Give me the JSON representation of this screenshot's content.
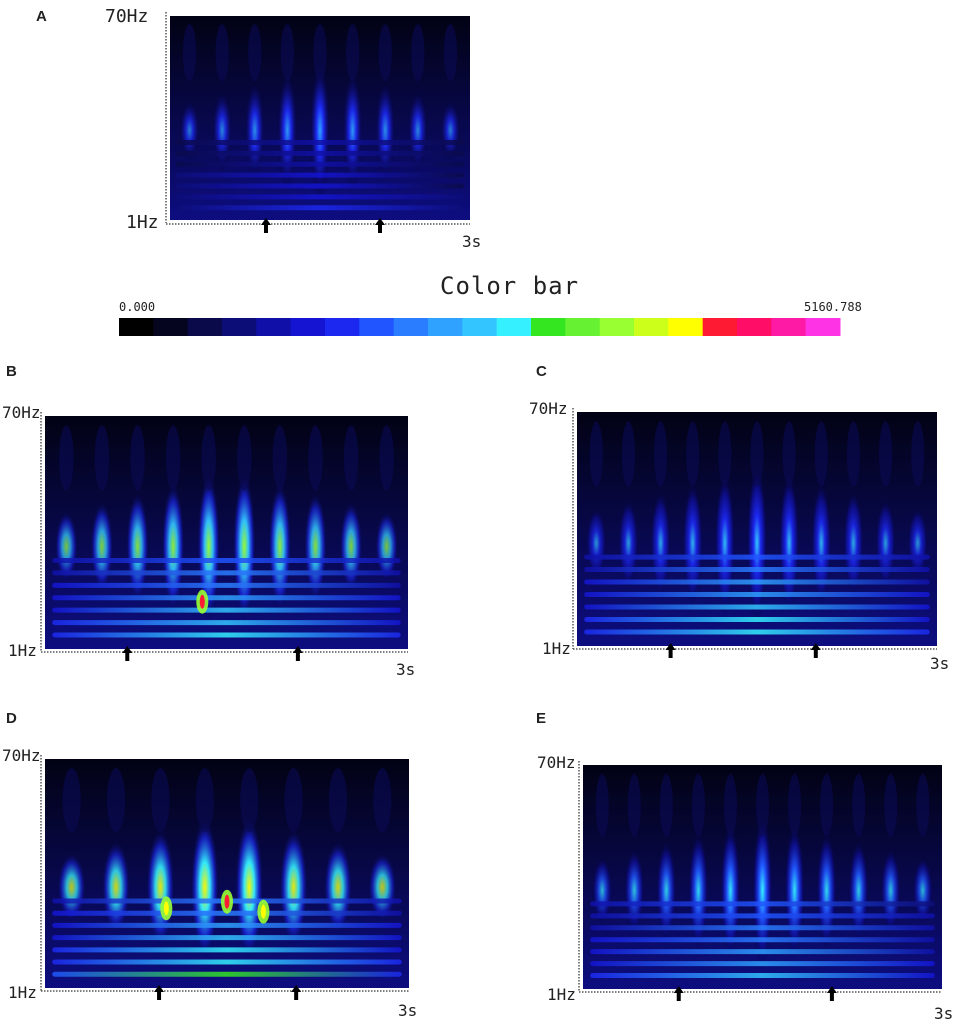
{
  "chart_data": [
    {
      "type": "heatmap",
      "panel": "A",
      "y_top_label": "70Hz",
      "y_bottom_label": "1Hz",
      "x_end_label": "3s",
      "ylim": [
        1,
        70
      ],
      "xlim": [
        0,
        3
      ],
      "stimulus_arrows_s": [
        0.96,
        2.1
      ],
      "columns": 9,
      "peak_intensity": 0.36,
      "band_intensity": 0.28,
      "hotspots": []
    },
    {
      "type": "heatmap",
      "panel": "B",
      "y_top_label": "70Hz",
      "y_bottom_label": "1Hz",
      "x_end_label": "3s",
      "ylim": [
        1,
        70
      ],
      "xlim": [
        0,
        3
      ],
      "stimulus_arrows_s": [
        0.68,
        2.09
      ],
      "columns": 10,
      "peak_intensity": 0.62,
      "band_intensity": 0.55,
      "hotspots": [
        {
          "t": 1.3,
          "f": 15,
          "v": 0.85
        }
      ]
    },
    {
      "type": "heatmap",
      "panel": "C",
      "y_top_label": "70Hz",
      "y_bottom_label": "1Hz",
      "x_end_label": "3s",
      "ylim": [
        1,
        70
      ],
      "xlim": [
        0,
        3
      ],
      "stimulus_arrows_s": [
        0.78,
        1.99
      ],
      "columns": 11,
      "peak_intensity": 0.4,
      "band_intensity": 0.56,
      "hotspots": []
    },
    {
      "type": "heatmap",
      "panel": "D",
      "y_top_label": "70Hz",
      "y_bottom_label": "1Hz",
      "x_end_label": "3s",
      "ylim": [
        1,
        70
      ],
      "xlim": [
        0,
        3
      ],
      "stimulus_arrows_s": [
        0.94,
        2.07
      ],
      "columns": 8,
      "peak_intensity": 0.68,
      "band_intensity": 0.6,
      "hotspots": [
        {
          "t": 1.5,
          "f": 27,
          "v": 0.86
        },
        {
          "t": 1.0,
          "f": 25,
          "v": 0.82
        },
        {
          "t": 1.8,
          "f": 24,
          "v": 0.82
        }
      ]
    },
    {
      "type": "heatmap",
      "panel": "E",
      "y_top_label": "70Hz",
      "y_bottom_label": "1Hz",
      "x_end_label": "3s",
      "ylim": [
        1,
        70
      ],
      "xlim": [
        0,
        3
      ],
      "stimulus_arrows_s": [
        0.8,
        2.08
      ],
      "columns": 11,
      "peak_intensity": 0.44,
      "band_intensity": 0.5,
      "hotspots": []
    }
  ],
  "colorbar": {
    "title": "Color bar",
    "min_label": "0.000",
    "max_label": "5160.788",
    "colors": [
      "#000000",
      "#05051f",
      "#0a0a4a",
      "#0d0d78",
      "#1010a8",
      "#1414d2",
      "#1c28f0",
      "#2055ff",
      "#2a7dff",
      "#2fa2ff",
      "#33c5ff",
      "#35f0ff",
      "#33e61f",
      "#66f233",
      "#99ff33",
      "#ccff1a",
      "#ffff00",
      "#ff1a33",
      "#ff0d66",
      "#ff1aa6",
      "#ff33e6"
    ]
  }
}
